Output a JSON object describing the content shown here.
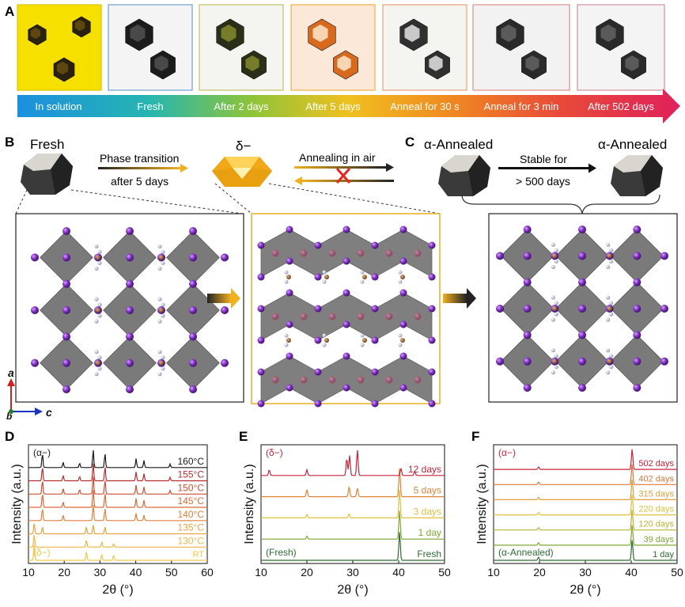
{
  "panels": {
    "A": "A",
    "B": "B",
    "C": "C",
    "D": "D",
    "E": "E",
    "F": "F"
  },
  "timeline": [
    "In solution",
    "Fresh",
    "After 2 days",
    "After 5 days",
    "Anneal for 30 s",
    "Anneal for 3 min",
    "After 502 days"
  ],
  "panelB": {
    "fresh_label": "Fresh",
    "phase_transition": "Phase transition",
    "after_days": "after 5 days",
    "delta_label": "δ−",
    "annealing": "Annealing in air"
  },
  "panelC": {
    "left_label": "α-Annealed",
    "right_label": "α-Annealed",
    "stable_for": "Stable for",
    "duration": "> 500 days"
  },
  "axes3d": {
    "a": "a",
    "b": "b",
    "c": "c"
  },
  "colors": {
    "purple": "#7b2fbe",
    "octahedron": "#707070",
    "bar_start": "#1b8fe0",
    "bar_end": "#e0205a",
    "cross": "#e8261c"
  },
  "chart_data": [
    {
      "type": "line",
      "panel": "D",
      "title": "",
      "xlabel": "2θ (°)",
      "ylabel": "Intensity (a.u.)",
      "xlim": [
        10,
        60
      ],
      "xticks": [
        10,
        20,
        30,
        40,
        50,
        60
      ],
      "tag_top": "(α−)",
      "tag_bottom": "(δ−)",
      "series": [
        {
          "name": "RT",
          "color": "#f2c84b",
          "peaks": [
            [
              11.6,
              0.9
            ],
            [
              26.2,
              0.5
            ],
            [
              30.5,
              0.35
            ],
            [
              33.8,
              0.3
            ]
          ]
        },
        {
          "name": "130°C",
          "color": "#f0b648",
          "peaks": [
            [
              11.6,
              0.7
            ],
            [
              26.2,
              0.4
            ],
            [
              30.5,
              0.3
            ],
            [
              33.8,
              0.2
            ]
          ]
        },
        {
          "name": "135°C",
          "color": "#e9a441",
          "peaks": [
            [
              11.6,
              0.6
            ],
            [
              13.9,
              0.4
            ],
            [
              26.2,
              0.4
            ],
            [
              28.1,
              0.5
            ],
            [
              31.4,
              0.4
            ]
          ]
        },
        {
          "name": "140°C",
          "color": "#e3803c",
          "peaks": [
            [
              13.9,
              0.7
            ],
            [
              19.7,
              0.3
            ],
            [
              28.1,
              0.9
            ],
            [
              31.4,
              0.7
            ],
            [
              40.1,
              0.4
            ],
            [
              42.3,
              0.3
            ]
          ]
        },
        {
          "name": "145°C",
          "color": "#dc6a38",
          "peaks": [
            [
              13.9,
              0.8
            ],
            [
              19.7,
              0.3
            ],
            [
              28.1,
              1.0
            ],
            [
              31.4,
              0.8
            ],
            [
              40.1,
              0.5
            ],
            [
              42.3,
              0.4
            ]
          ]
        },
        {
          "name": "150°C",
          "color": "#cf4e34",
          "peaks": [
            [
              13.9,
              0.8
            ],
            [
              19.7,
              0.3
            ],
            [
              24.3,
              0.25
            ],
            [
              28.1,
              1.0
            ],
            [
              31.4,
              0.8
            ],
            [
              40.1,
              0.5
            ],
            [
              42.3,
              0.4
            ],
            [
              49.6,
              0.2
            ]
          ]
        },
        {
          "name": "155°C",
          "color": "#b92f30",
          "peaks": [
            [
              13.9,
              0.8
            ],
            [
              19.7,
              0.3
            ],
            [
              24.3,
              0.25
            ],
            [
              28.1,
              1.0
            ],
            [
              31.4,
              0.8
            ],
            [
              40.1,
              0.5
            ],
            [
              42.3,
              0.4
            ],
            [
              49.6,
              0.2
            ]
          ]
        },
        {
          "name": "160°C",
          "color": "#1a1a1a",
          "peaks": [
            [
              13.9,
              0.8
            ],
            [
              19.7,
              0.3
            ],
            [
              24.3,
              0.25
            ],
            [
              28.1,
              1.0
            ],
            [
              31.4,
              0.8
            ],
            [
              40.1,
              0.5
            ],
            [
              42.3,
              0.4
            ],
            [
              49.6,
              0.2
            ]
          ]
        }
      ]
    },
    {
      "type": "line",
      "panel": "E",
      "title": "",
      "xlabel": "2θ (°)",
      "ylabel": "Intensity (a.u.)",
      "xlim": [
        10,
        50
      ],
      "xticks": [
        10,
        20,
        30,
        40,
        50
      ],
      "tag_top": "(δ−)",
      "tag_bottom": "(Fresh)",
      "series": [
        {
          "name": "Fresh",
          "color": "#2e6b33",
          "peaks": [
            [
              40.2,
              1.0
            ]
          ]
        },
        {
          "name": "1 day",
          "color": "#7ea832",
          "peaks": [
            [
              20.0,
              0.1
            ],
            [
              40.2,
              1.0
            ]
          ]
        },
        {
          "name": "3 days",
          "color": "#e0c040",
          "peaks": [
            [
              20.0,
              0.12
            ],
            [
              29.2,
              0.15
            ],
            [
              40.2,
              1.0
            ]
          ]
        },
        {
          "name": "5 days",
          "color": "#e0843a",
          "peaks": [
            [
              20.0,
              0.25
            ],
            [
              29.2,
              0.35
            ],
            [
              31.0,
              0.3
            ],
            [
              40.2,
              1.0
            ]
          ]
        },
        {
          "name": "12 days",
          "color": "#c8233a",
          "peaks": [
            [
              11.8,
              0.2
            ],
            [
              20.0,
              0.2
            ],
            [
              28.7,
              0.6
            ],
            [
              29.3,
              0.7
            ],
            [
              31.0,
              0.9
            ],
            [
              40.5,
              0.25
            ],
            [
              43.5,
              0.15
            ]
          ]
        }
      ]
    },
    {
      "type": "line",
      "panel": "F",
      "title": "",
      "xlabel": "2θ (°)",
      "ylabel": "Intensity (a.u.)",
      "xlim": [
        10,
        50
      ],
      "xticks": [
        10,
        20,
        30,
        40,
        50
      ],
      "tag_top": "(α−)",
      "tag_bottom": "(α-Annealed)",
      "series": [
        {
          "name": "1 day",
          "color": "#2e6b33",
          "peaks": [
            [
              19.8,
              0.15
            ],
            [
              40.2,
              1.0
            ]
          ]
        },
        {
          "name": "39 days",
          "color": "#7ea832",
          "peaks": [
            [
              19.8,
              0.12
            ],
            [
              40.2,
              1.0
            ]
          ]
        },
        {
          "name": "120 days",
          "color": "#b7b534",
          "peaks": [
            [
              19.8,
              0.12
            ],
            [
              40.2,
              1.0
            ]
          ]
        },
        {
          "name": "220 days",
          "color": "#e0c040",
          "peaks": [
            [
              19.8,
              0.12
            ],
            [
              40.2,
              1.0
            ]
          ]
        },
        {
          "name": "315 days",
          "color": "#e0a040",
          "peaks": [
            [
              19.8,
              0.12
            ],
            [
              40.2,
              1.0
            ]
          ]
        },
        {
          "name": "402 days",
          "color": "#e0783a",
          "peaks": [
            [
              19.8,
              0.12
            ],
            [
              40.2,
              1.0
            ]
          ]
        },
        {
          "name": "502 days",
          "color": "#c8233a",
          "peaks": [
            [
              19.8,
              0.12
            ],
            [
              40.2,
              1.0
            ]
          ]
        }
      ]
    }
  ]
}
